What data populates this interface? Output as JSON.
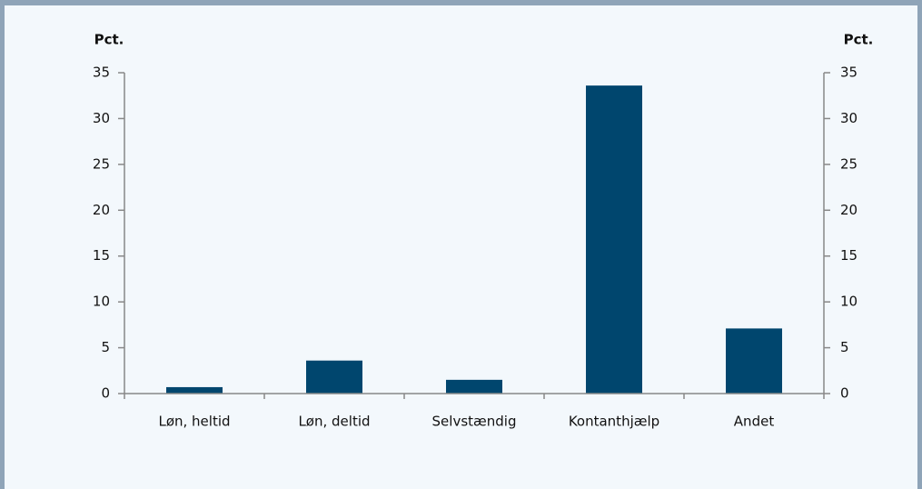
{
  "chart_data": {
    "type": "bar",
    "y_label": "Pct.",
    "y2_label": "Pct.",
    "categories": [
      "Løn, heltid",
      "Løn, deltid",
      "Selvstændig",
      "Kontanthjælp",
      "Andet"
    ],
    "values": [
      0.7,
      3.6,
      1.5,
      33.6,
      7.1
    ],
    "color": "#00466e",
    "ylim": [
      0,
      35
    ],
    "yticks": [
      0,
      5,
      10,
      15,
      20,
      25,
      30,
      35
    ],
    "y2lim": [
      0,
      35
    ],
    "y2ticks": [
      0,
      5,
      10,
      15,
      20,
      25,
      30,
      35
    ]
  }
}
